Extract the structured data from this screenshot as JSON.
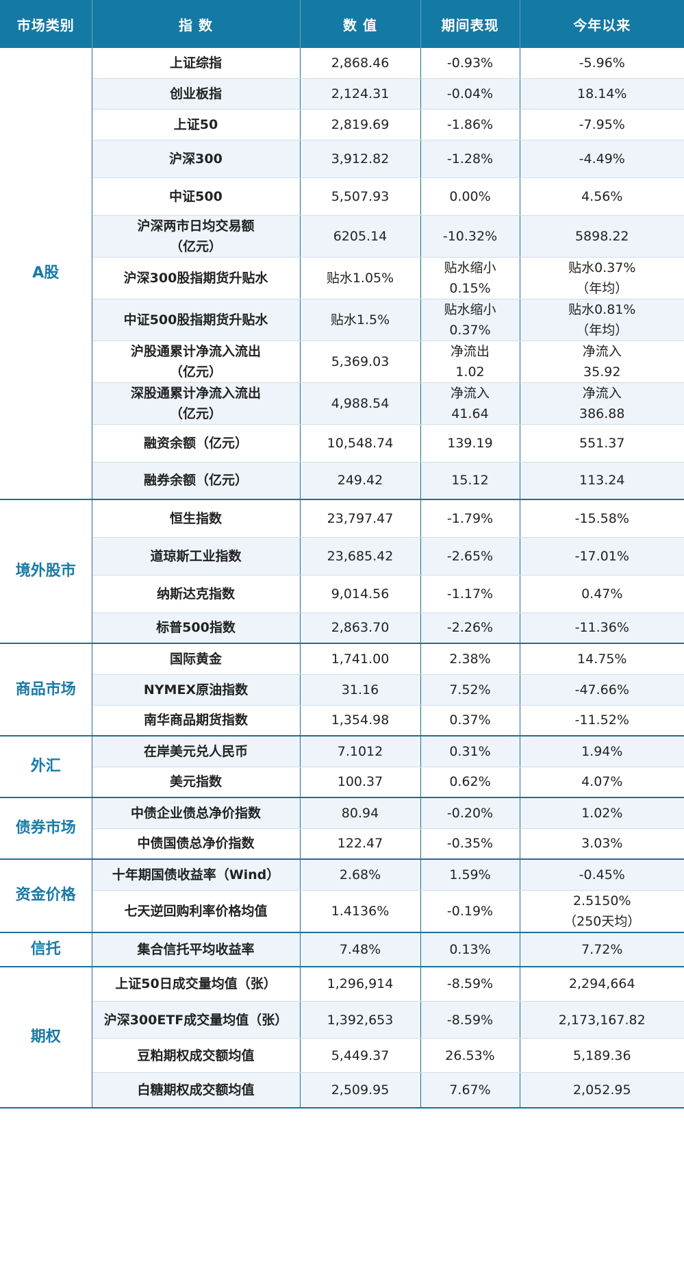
{
  "headers": [
    "市场类别",
    "指  数",
    "数  值",
    "期间表现",
    "今年以来"
  ],
  "groups": [
    {
      "category": "A股",
      "rows": [
        {
          "name": [
            "上证综指"
          ],
          "value": [
            "2,868.46"
          ],
          "period": [
            "-0.93%"
          ],
          "ytd": [
            "-5.96%"
          ]
        },
        {
          "name": [
            "创业板指"
          ],
          "value": [
            "2,124.31"
          ],
          "period": [
            "-0.04%"
          ],
          "ytd": [
            "18.14%"
          ]
        },
        {
          "name": [
            "上证50"
          ],
          "value": [
            "2,819.69"
          ],
          "period": [
            "-1.86%"
          ],
          "ytd": [
            "-7.95%"
          ]
        },
        {
          "name": [
            "沪深300"
          ],
          "value": [
            "3,912.82"
          ],
          "period": [
            "-1.28%"
          ],
          "ytd": [
            "-4.49%"
          ]
        },
        {
          "name": [
            "中证500"
          ],
          "value": [
            "5,507.93"
          ],
          "period": [
            "0.00%"
          ],
          "ytd": [
            "4.56%"
          ]
        },
        {
          "name": [
            "沪深两市日均交易额",
            "（亿元）"
          ],
          "value": [
            "6205.14"
          ],
          "period": [
            "-10.32%"
          ],
          "ytd": [
            "5898.22"
          ]
        },
        {
          "name": [
            "沪深300股指期货升贴水"
          ],
          "value": [
            "贴水1.05%"
          ],
          "period": [
            "贴水缩小",
            "0.15%"
          ],
          "ytd": [
            "贴水0.37%",
            "（年均）"
          ]
        },
        {
          "name": [
            "中证500股指期货升贴水"
          ],
          "value": [
            "贴水1.5%"
          ],
          "period": [
            "贴水缩小",
            "0.37%"
          ],
          "ytd": [
            "贴水0.81%",
            "（年均）"
          ]
        },
        {
          "name": [
            "沪股通累计净流入流出",
            "（亿元）"
          ],
          "value": [
            "5,369.03"
          ],
          "period": [
            "净流出",
            "1.02"
          ],
          "ytd": [
            "净流入",
            "35.92"
          ]
        },
        {
          "name": [
            "深股通累计净流入流出",
            "（亿元）"
          ],
          "value": [
            "4,988.54"
          ],
          "period": [
            "净流入",
            "41.64"
          ],
          "ytd": [
            "净流入",
            "386.88"
          ]
        },
        {
          "name": [
            "融资余额（亿元）"
          ],
          "value": [
            "10,548.74"
          ],
          "period": [
            "139.19"
          ],
          "ytd": [
            "551.37"
          ]
        },
        {
          "name": [
            "融券余额（亿元）"
          ],
          "value": [
            "249.42"
          ],
          "period": [
            "15.12"
          ],
          "ytd": [
            "113.24"
          ]
        }
      ]
    },
    {
      "category": "境外股市",
      "rows": [
        {
          "name": [
            "恒生指数"
          ],
          "value": [
            "23,797.47"
          ],
          "period": [
            "-1.79%"
          ],
          "ytd": [
            "-15.58%"
          ]
        },
        {
          "name": [
            "道琼斯工业指数"
          ],
          "value": [
            "23,685.42"
          ],
          "period": [
            "-2.65%"
          ],
          "ytd": [
            "-17.01%"
          ]
        },
        {
          "name": [
            "纳斯达克指数"
          ],
          "value": [
            "9,014.56"
          ],
          "period": [
            "-1.17%"
          ],
          "ytd": [
            "0.47%"
          ]
        },
        {
          "name": [
            "标普500指数"
          ],
          "value": [
            "2,863.70"
          ],
          "period": [
            "-2.26%"
          ],
          "ytd": [
            "-11.36%"
          ]
        }
      ]
    },
    {
      "category": "商品市场",
      "rows": [
        {
          "name": [
            "国际黄金"
          ],
          "value": [
            "1,741.00"
          ],
          "period": [
            "2.38%"
          ],
          "ytd": [
            "14.75%"
          ]
        },
        {
          "name": [
            "NYMEX原油指数"
          ],
          "value": [
            "31.16"
          ],
          "period": [
            "7.52%"
          ],
          "ytd": [
            "-47.66%"
          ]
        },
        {
          "name": [
            "南华商品期货指数"
          ],
          "value": [
            "1,354.98"
          ],
          "period": [
            "0.37%"
          ],
          "ytd": [
            "-11.52%"
          ]
        }
      ]
    },
    {
      "category": "外汇",
      "rows": [
        {
          "name": [
            "在岸美元兑人民币"
          ],
          "value": [
            "7.1012"
          ],
          "period": [
            "0.31%"
          ],
          "ytd": [
            "1.94%"
          ]
        },
        {
          "name": [
            "美元指数"
          ],
          "value": [
            "100.37"
          ],
          "period": [
            "0.62%"
          ],
          "ytd": [
            "4.07%"
          ]
        }
      ]
    },
    {
      "category": "债券市场",
      "rows": [
        {
          "name": [
            "中债企业债总净价指数"
          ],
          "value": [
            "80.94"
          ],
          "period": [
            "-0.20%"
          ],
          "ytd": [
            "1.02%"
          ]
        },
        {
          "name": [
            "中债国债总净价指数"
          ],
          "value": [
            "122.47"
          ],
          "period": [
            "-0.35%"
          ],
          "ytd": [
            "3.03%"
          ]
        }
      ]
    },
    {
      "category": "资金价格",
      "rows": [
        {
          "name": [
            "十年期国债收益率（Wind）"
          ],
          "value": [
            "2.68%"
          ],
          "period": [
            "1.59%"
          ],
          "ytd": [
            "-0.45%"
          ]
        },
        {
          "name": [
            "七天逆回购利率价格均值"
          ],
          "value": [
            "1.4136%"
          ],
          "period": [
            "-0.19%"
          ],
          "ytd": [
            "2.5150%",
            "（250天均）"
          ]
        }
      ]
    },
    {
      "category": "信托",
      "rows": [
        {
          "name": [
            "集合信托平均收益率"
          ],
          "value": [
            "7.48%"
          ],
          "period": [
            "0.13%"
          ],
          "ytd": [
            "7.72%"
          ]
        }
      ]
    },
    {
      "category": "期权",
      "rows": [
        {
          "name": [
            "上证50日成交量均值（张）"
          ],
          "value": [
            "1,296,914"
          ],
          "period": [
            "-8.59%"
          ],
          "ytd": [
            "2,294,664"
          ]
        },
        {
          "name": [
            "沪深300ETF成交量均值（张）"
          ],
          "value": [
            "1,392,653"
          ],
          "period": [
            "-8.59%"
          ],
          "ytd": [
            "2,173,167.82"
          ]
        },
        {
          "name": [
            "豆粕期权成交额均值"
          ],
          "value": [
            "5,449.37"
          ],
          "period": [
            "26.53%"
          ],
          "ytd": [
            "5,189.36"
          ]
        },
        {
          "name": [
            "白糖期权成交额均值"
          ],
          "value": [
            "2,509.95"
          ],
          "period": [
            "7.67%"
          ],
          "ytd": [
            "2,052.95"
          ]
        }
      ]
    }
  ]
}
